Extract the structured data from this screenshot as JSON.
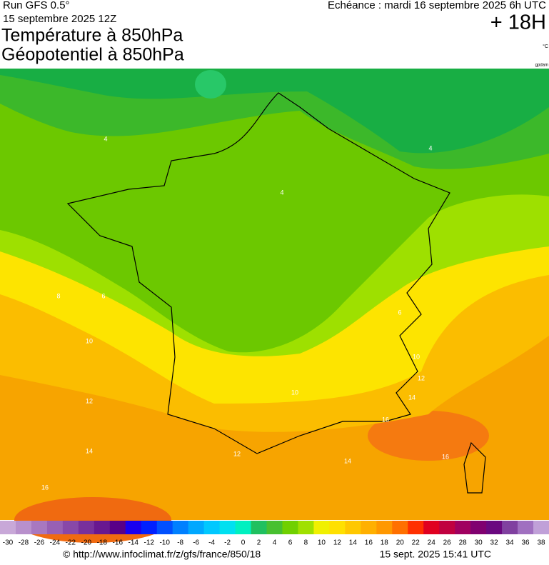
{
  "header": {
    "run": "Run GFS 0.5°",
    "run_date": "15 septembre 2025 12Z",
    "title_1": "Température à 850hPa",
    "title_2": "Géopotentiel à 850hPa",
    "forecast_time": "Echéance : mardi 16 septembre 2025 6h UTC",
    "lead": "+ 18H",
    "unit": "°C",
    "unit_2": "gpdam"
  },
  "map": {
    "contour_labels": [
      4,
      4,
      4,
      6,
      8,
      10,
      12,
      14,
      16,
      6,
      10,
      12,
      14,
      16,
      10,
      12,
      14,
      16
    ]
  },
  "legend": {
    "labels": [
      -30,
      -28,
      -26,
      -24,
      -22,
      -20,
      -18,
      -16,
      -14,
      -12,
      -10,
      -8,
      -6,
      -4,
      -2,
      0,
      2,
      4,
      6,
      8,
      10,
      12,
      14,
      16,
      18,
      20,
      22,
      24,
      26,
      28,
      30,
      32,
      34,
      36,
      38
    ],
    "colors": [
      "#c8a8d8",
      "#b890cc",
      "#a878c0",
      "#9860b4",
      "#8848a8",
      "#78309c",
      "#681890",
      "#580088",
      "#1800f0",
      "#0020ff",
      "#0050ff",
      "#0080ff",
      "#00a8ff",
      "#00c8ff",
      "#00e0f0",
      "#00f0c0",
      "#20c060",
      "#48c030",
      "#70d000",
      "#a0e000",
      "#f0f000",
      "#ffe000",
      "#ffc800",
      "#ffb000",
      "#ff9800",
      "#ff7000",
      "#ff3000",
      "#e00020",
      "#c00040",
      "#a00060",
      "#800070",
      "#6a0880",
      "#8040a0",
      "#a070c0",
      "#c0a0d8"
    ]
  },
  "footer": {
    "url": "© http://www.infoclimat.fr/z/gfs/france/850/18",
    "timestamp": "15 sept. 2025 15:41 UTC"
  }
}
